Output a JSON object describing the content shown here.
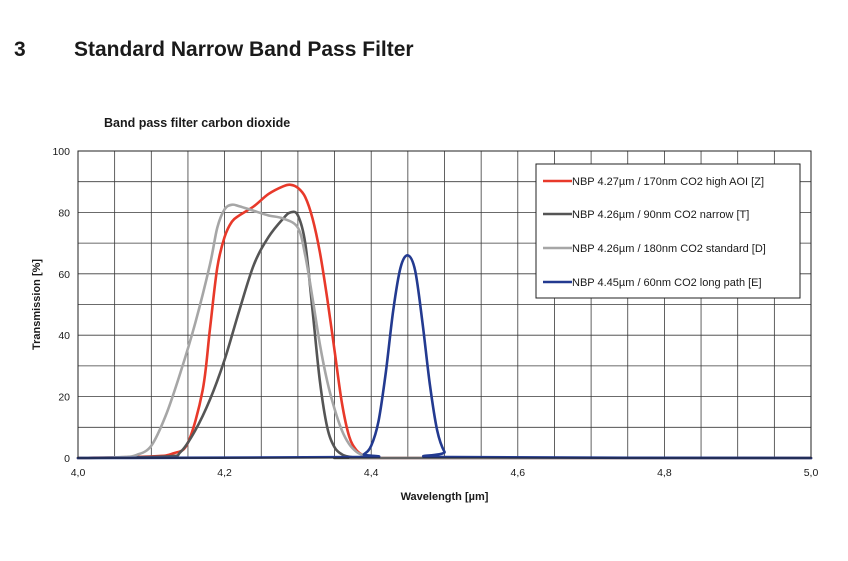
{
  "section": {
    "number": "3",
    "title": "Standard Narrow Band Pass Filter"
  },
  "chart_data": {
    "type": "line",
    "title": "Band pass filter carbon dioxide",
    "xlabel": "Wavelength [µm]",
    "ylabel": "Transmission [%]",
    "xlim": [
      4.0,
      5.0
    ],
    "ylim": [
      0,
      100
    ],
    "x_ticks": [
      4.0,
      4.2,
      4.4,
      4.6,
      4.8,
      5.0
    ],
    "x_tick_labels": [
      "4,0",
      "4,2",
      "4,4",
      "4,6",
      "4,8",
      "5,0"
    ],
    "y_ticks": [
      0,
      20,
      40,
      60,
      80,
      100
    ],
    "y_tick_labels": [
      "0",
      "20",
      "40",
      "60",
      "80",
      "100"
    ],
    "grid": true,
    "legend_position": "top-right",
    "series": [
      {
        "name": "NBP 4.27µm / 170nm CO2 high AOI [Z]",
        "color": "#e8392a",
        "x": [
          4.0,
          4.1,
          4.13,
          4.15,
          4.17,
          4.18,
          4.19,
          4.2,
          4.21,
          4.22,
          4.24,
          4.26,
          4.28,
          4.29,
          4.3,
          4.31,
          4.32,
          4.33,
          4.34,
          4.35,
          4.36,
          4.37,
          4.38,
          4.39,
          4.4,
          4.42,
          5.0
        ],
        "y": [
          0,
          0.5,
          1.5,
          5,
          22,
          42,
          62,
          72,
          77,
          79,
          82,
          86,
          88.5,
          89,
          88,
          85,
          78,
          67,
          52,
          35,
          18,
          7,
          2.5,
          0.8,
          0.2,
          0,
          0
        ]
      },
      {
        "name": "NBP 4.26µm / 90nm CO2 narrow [T]",
        "color": "#555555",
        "x": [
          4.0,
          4.12,
          4.14,
          4.16,
          4.18,
          4.2,
          4.22,
          4.24,
          4.26,
          4.28,
          4.29,
          4.3,
          4.31,
          4.32,
          4.33,
          4.34,
          4.35,
          4.36,
          4.37,
          4.38,
          4.4,
          5.0
        ],
        "y": [
          0,
          0.5,
          2,
          9,
          19,
          32,
          48,
          63,
          72,
          78,
          80,
          79,
          70,
          48,
          25,
          10,
          3.5,
          1.2,
          0.4,
          0.1,
          0,
          0
        ]
      },
      {
        "name": "NBP 4.26µm / 180nm CO2 standard [D]",
        "color": "#a6a6a6",
        "x": [
          4.0,
          4.06,
          4.08,
          4.1,
          4.12,
          4.14,
          4.16,
          4.18,
          4.19,
          4.2,
          4.21,
          4.22,
          4.24,
          4.26,
          4.28,
          4.3,
          4.31,
          4.32,
          4.33,
          4.34,
          4.35,
          4.36,
          4.37,
          4.38,
          4.39,
          4.4,
          4.42,
          5.0
        ],
        "y": [
          0,
          0.3,
          1,
          4,
          14,
          28,
          44,
          63,
          75,
          81,
          82.5,
          82,
          80.5,
          79,
          78,
          75,
          66,
          52,
          37,
          25,
          16,
          9,
          4.5,
          2,
          0.8,
          0.3,
          0,
          0
        ]
      },
      {
        "name": "NBP 4.45µm / 60nm CO2 long path [E]",
        "color": "#233a90",
        "x": [
          4.0,
          4.38,
          4.39,
          4.4,
          4.41,
          4.42,
          4.43,
          4.44,
          4.45,
          4.46,
          4.47,
          4.48,
          4.49,
          4.5,
          4.51,
          5.0
        ],
        "y": [
          0,
          0.3,
          1.2,
          4,
          12,
          28,
          48,
          62,
          66,
          61,
          44,
          24,
          9,
          2,
          0.3,
          0
        ]
      }
    ]
  }
}
